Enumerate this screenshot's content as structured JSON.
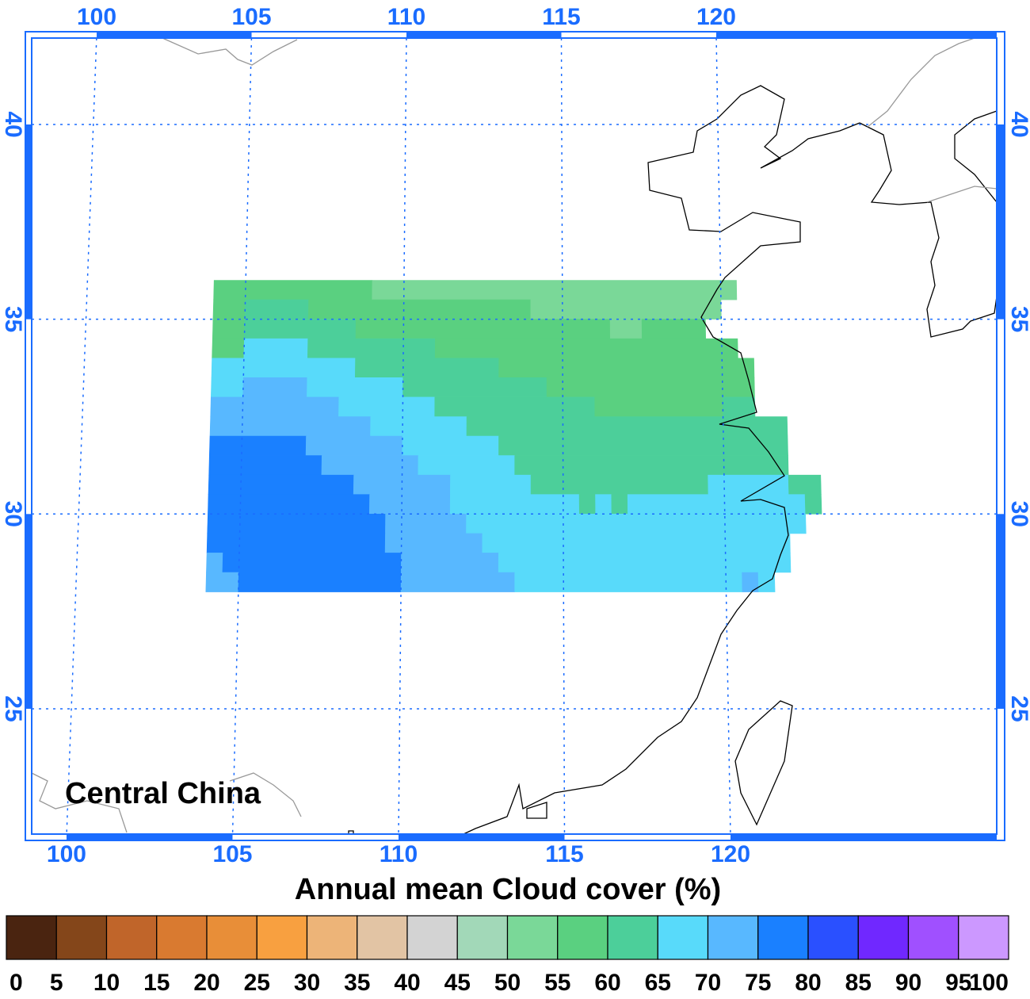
{
  "map": {
    "title": "Annual mean Cloud cover (%)",
    "label": "Central China",
    "lon_ticks": [
      100,
      105,
      110,
      115,
      120
    ],
    "lat_ticks": [
      25,
      30,
      35,
      40
    ],
    "grid": true,
    "field": {
      "rows": [
        {
          "lat": [
            36,
            35.5
          ],
          "runs": [
            [
              104,
              109,
              57.5
            ],
            [
              109,
              120.5,
              52.5
            ]
          ]
        },
        {
          "lat": [
            35.5,
            35
          ],
          "runs": [
            [
              104,
              105,
              57.5
            ],
            [
              105,
              107,
              62.5
            ],
            [
              107,
              114,
              57.5
            ],
            [
              114,
              120,
              52.5
            ]
          ]
        },
        {
          "lat": [
            35,
            34.5
          ],
          "runs": [
            [
              104,
              105,
              57.5
            ],
            [
              105,
              108.5,
              62.5
            ],
            [
              108.5,
              116.5,
              57.5
            ],
            [
              116.5,
              117.5,
              52.5
            ],
            [
              117.5,
              119.5,
              57.5
            ]
          ]
        },
        {
          "lat": [
            34.5,
            34
          ],
          "runs": [
            [
              104,
              105,
              57.5
            ],
            [
              105,
              107,
              67.5
            ],
            [
              107,
              111,
              62.5
            ],
            [
              111,
              120.5,
              57.5
            ]
          ]
        },
        {
          "lat": [
            34,
            33.5
          ],
          "runs": [
            [
              104,
              108.5,
              67.5
            ],
            [
              108.5,
              113,
              62.5
            ],
            [
              113,
              121,
              57.5
            ]
          ]
        },
        {
          "lat": [
            33.5,
            33
          ],
          "runs": [
            [
              104,
              105,
              67.5
            ],
            [
              105,
              107,
              72.5
            ],
            [
              107,
              110,
              67.5
            ],
            [
              110,
              114.5,
              62.5
            ],
            [
              114.5,
              121,
              57.5
            ]
          ]
        },
        {
          "lat": [
            33,
            32.5
          ],
          "runs": [
            [
              104,
              108,
              72.5
            ],
            [
              108,
              111,
              67.5
            ],
            [
              111,
              116,
              62.5
            ],
            [
              116,
              120,
              57.5
            ],
            [
              120,
              121,
              62.5
            ]
          ]
        },
        {
          "lat": [
            32.5,
            32
          ],
          "runs": [
            [
              104,
              109,
              72.5
            ],
            [
              109,
              112,
              67.5
            ],
            [
              112,
              122,
              62.5
            ]
          ]
        },
        {
          "lat": [
            32,
            31.5
          ],
          "runs": [
            [
              104,
              107,
              77.5
            ],
            [
              107,
              110,
              72.5
            ],
            [
              110,
              113,
              67.5
            ],
            [
              113,
              122,
              62.5
            ]
          ]
        },
        {
          "lat": [
            31.5,
            31
          ],
          "runs": [
            [
              104,
              107.5,
              77.5
            ],
            [
              107.5,
              110.5,
              72.5
            ],
            [
              110.5,
              113.5,
              67.5
            ],
            [
              113.5,
              122,
              62.5
            ]
          ]
        },
        {
          "lat": [
            31,
            30.5
          ],
          "runs": [
            [
              104,
              108.5,
              77.5
            ],
            [
              108.5,
              111.5,
              72.5
            ],
            [
              111.5,
              114,
              67.5
            ],
            [
              114,
              119.5,
              62.5
            ],
            [
              119.5,
              122,
              67.5
            ],
            [
              122,
              123,
              62.5
            ]
          ]
        },
        {
          "lat": [
            30.5,
            30
          ],
          "runs": [
            [
              104,
              109,
              77.5
            ],
            [
              109,
              111.5,
              72.5
            ],
            [
              111.5,
              115.5,
              67.5
            ],
            [
              115.5,
              116,
              62.5
            ],
            [
              116,
              116.5,
              67.5
            ],
            [
              116.5,
              117,
              62.5
            ],
            [
              117,
              122.5,
              67.5
            ],
            [
              122.5,
              123,
              62.5
            ]
          ]
        },
        {
          "lat": [
            30,
            29.5
          ],
          "runs": [
            [
              104,
              109.5,
              77.5
            ],
            [
              109.5,
              112,
              72.5
            ],
            [
              112,
              122.5,
              67.5
            ]
          ]
        },
        {
          "lat": [
            29.5,
            29
          ],
          "runs": [
            [
              104,
              109.5,
              77.5
            ],
            [
              109.5,
              112.5,
              72.5
            ],
            [
              112.5,
              122,
              67.5
            ]
          ]
        },
        {
          "lat": [
            29,
            28.5
          ],
          "runs": [
            [
              104,
              104.5,
              72.5
            ],
            [
              104.5,
              110,
              77.5
            ],
            [
              110,
              113,
              72.5
            ],
            [
              113,
              122,
              67.5
            ]
          ]
        },
        {
          "lat": [
            28.5,
            28
          ],
          "runs": [
            [
              104,
              105,
              72.5
            ],
            [
              105,
              110,
              77.5
            ],
            [
              110,
              113.5,
              72.5
            ],
            [
              113.5,
              120.5,
              67.5
            ],
            [
              120.5,
              121,
              72.5
            ],
            [
              121,
              121.5,
              67.5
            ]
          ]
        }
      ]
    },
    "colorbar": {
      "levels": [
        0,
        5,
        10,
        15,
        20,
        25,
        30,
        35,
        40,
        45,
        50,
        55,
        60,
        65,
        70,
        75,
        80,
        85,
        90,
        95,
        100
      ],
      "colors": [
        "#4a2410",
        "#84461a",
        "#c0652a",
        "#d97a30",
        "#e88e38",
        "#f8a040",
        "#edb478",
        "#e2c4a4",
        "#d3d3d3",
        "#a2d8b8",
        "#7ad898",
        "#5ad080",
        "#4ccf9a",
        "#58dafa",
        "#58b8ff",
        "#1a80ff",
        "#2a50ff",
        "#7028ff",
        "#a050ff",
        "#cc98ff"
      ]
    }
  }
}
